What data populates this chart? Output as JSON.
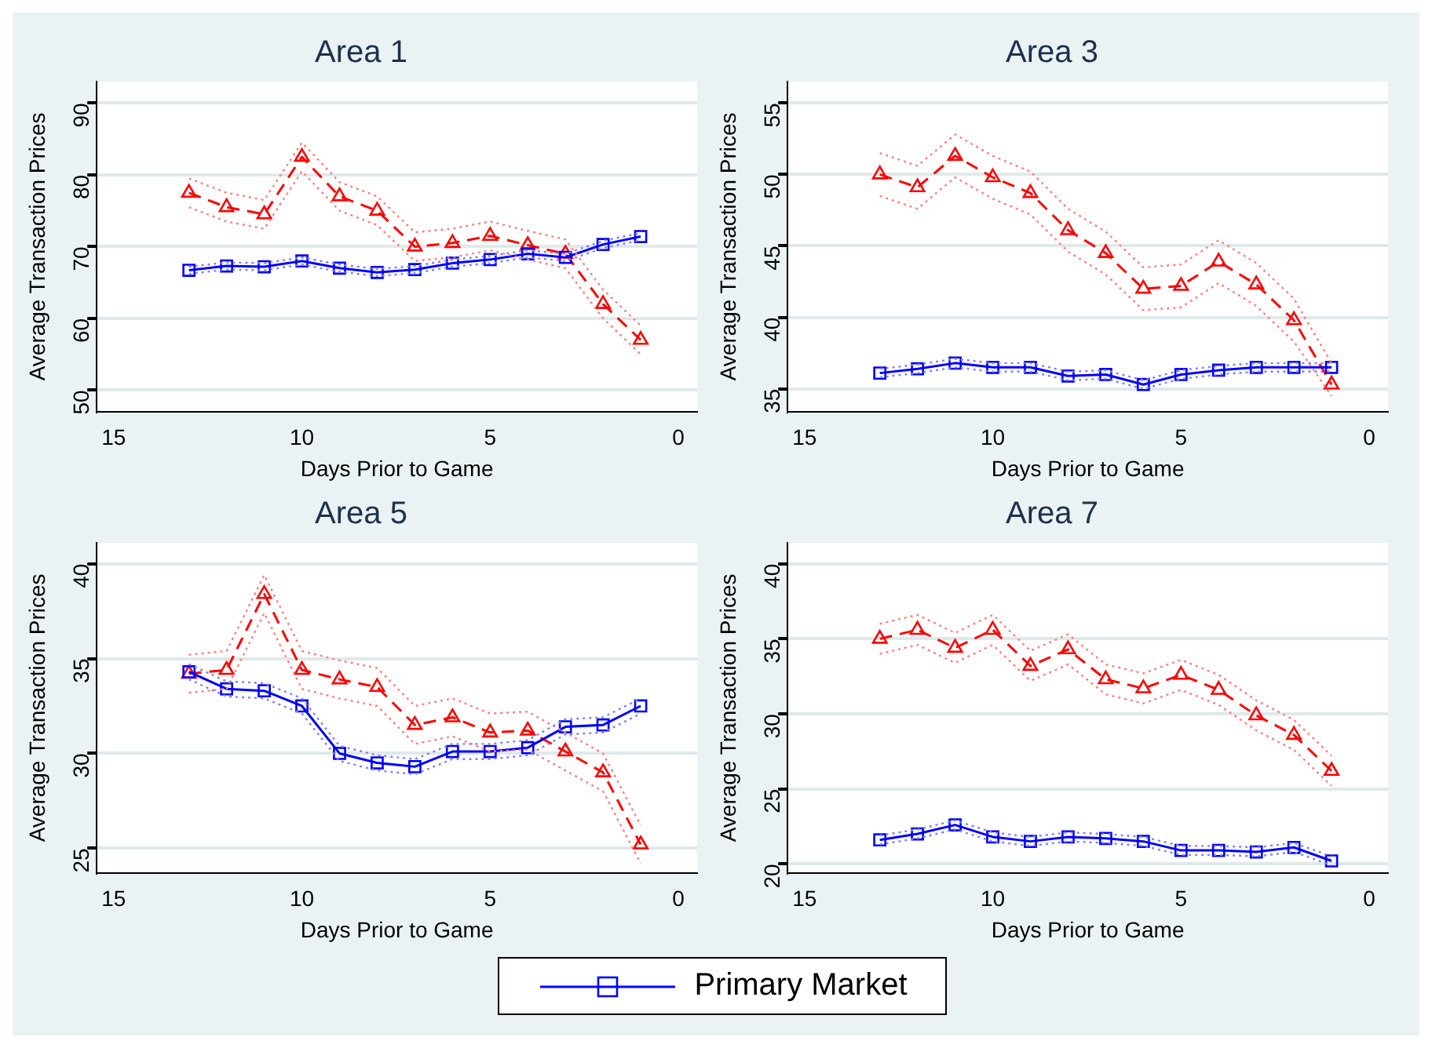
{
  "chart_data": [
    {
      "type": "line",
      "title": "Area 1",
      "xlabel": "Days Prior to Game",
      "ylabel": "Average Transaction Prices",
      "x": [
        13,
        12,
        11,
        10,
        9,
        8,
        7,
        6,
        5,
        4,
        3,
        2,
        1
      ],
      "xlim": [
        15.45,
        -0.5
      ],
      "xticks": [
        15,
        10,
        5,
        0
      ],
      "ylim": [
        47,
        93
      ],
      "yticks": [
        50,
        60,
        70,
        80,
        90
      ],
      "grid": "y",
      "legend": "bottom",
      "series": [
        {
          "color": "#8080ff",
          "marker": "none",
          "line_style": "dotted",
          "values": [
            66.2,
            66.8,
            66.7,
            67.5,
            66.5,
            65.9,
            66.3,
            67.2,
            67.7,
            68.5,
            68,
            69.8,
            70.9
          ]
        },
        {
          "color": "#8080ff",
          "marker": "none",
          "line_style": "dotted",
          "values": [
            67.2,
            67.8,
            67.7,
            68.5,
            67.5,
            66.9,
            67.3,
            68.2,
            68.7,
            69.5,
            69,
            70.8,
            71.9
          ]
        },
        {
          "color": "#ff8080",
          "marker": "none",
          "line_style": "dotted",
          "values": [
            75.5,
            73.5,
            72.5,
            80.5,
            75,
            73,
            68,
            68.5,
            69.5,
            68.2,
            67,
            60,
            55
          ]
        },
        {
          "color": "#ff8080",
          "marker": "none",
          "line_style": "dotted",
          "values": [
            79.5,
            77.5,
            76.5,
            84.5,
            79,
            77,
            72,
            72.5,
            73.5,
            72.2,
            71,
            64,
            59
          ]
        },
        {
          "name": "Primary Market",
          "color": "#0000ff",
          "marker": "square",
          "line_style": "solid",
          "values": [
            66.7,
            67.3,
            67.2,
            68,
            67,
            66.4,
            66.8,
            67.7,
            68.2,
            69,
            68.5,
            70.3,
            71.4
          ]
        },
        {
          "color": "#ff0000",
          "marker": "triangle",
          "line_style": "dashed",
          "values": [
            77.5,
            75.5,
            74.5,
            82.5,
            77,
            75,
            70,
            70.5,
            71.5,
            70.2,
            69,
            62,
            57
          ]
        }
      ]
    },
    {
      "type": "line",
      "title": "Area 3",
      "xlabel": "Days Prior to Game",
      "ylabel": "Average Transaction Prices",
      "x": [
        13,
        12,
        11,
        10,
        9,
        8,
        7,
        6,
        5,
        4,
        3,
        2,
        1
      ],
      "xlim": [
        15.45,
        -0.5
      ],
      "xticks": [
        15,
        10,
        5,
        0
      ],
      "ylim": [
        33.4,
        56.5
      ],
      "yticks": [
        35,
        40,
        45,
        50,
        55
      ],
      "grid": "y",
      "legend": "bottom",
      "series": [
        {
          "color": "#8080ff",
          "marker": "none",
          "line_style": "dotted",
          "values": [
            35.8,
            36.1,
            36.5,
            36.2,
            36.2,
            35.6,
            35.7,
            35.0,
            35.7,
            36.0,
            36.2,
            36.2,
            36.2
          ]
        },
        {
          "color": "#8080ff",
          "marker": "none",
          "line_style": "dotted",
          "values": [
            36.4,
            36.7,
            37.1,
            36.8,
            36.8,
            36.2,
            36.3,
            35.6,
            36.3,
            36.6,
            36.8,
            36.8,
            36.8
          ]
        },
        {
          "color": "#ff8080",
          "marker": "none",
          "line_style": "dotted",
          "values": [
            48.5,
            47.6,
            49.8,
            48.3,
            47.2,
            44.6,
            43,
            40.5,
            40.7,
            42.4,
            40.8,
            38.3,
            34.5
          ]
        },
        {
          "color": "#ff8080",
          "marker": "none",
          "line_style": "dotted",
          "values": [
            51.5,
            50.6,
            52.8,
            51.3,
            50.2,
            47.6,
            46,
            43.5,
            43.7,
            45.4,
            43.8,
            41.3,
            36.8
          ]
        },
        {
          "name": "Primary Market",
          "color": "#0000ff",
          "marker": "square",
          "line_style": "solid",
          "values": [
            36.1,
            36.4,
            36.8,
            36.5,
            36.5,
            35.9,
            36.0,
            35.3,
            36.0,
            36.3,
            36.5,
            36.5,
            36.5
          ]
        },
        {
          "color": "#ff0000",
          "marker": "triangle",
          "line_style": "dashed",
          "values": [
            50,
            49.1,
            51.3,
            49.8,
            48.7,
            46.1,
            44.5,
            42,
            42.2,
            43.9,
            42.3,
            39.8,
            35.3
          ]
        }
      ]
    },
    {
      "type": "line",
      "title": "Area 5",
      "xlabel": "Days Prior to Game",
      "ylabel": "Average Transaction Prices",
      "x": [
        13,
        12,
        11,
        10,
        9,
        8,
        7,
        6,
        5,
        4,
        3,
        2,
        1
      ],
      "xlim": [
        15.45,
        -0.5
      ],
      "xticks": [
        15,
        10,
        5,
        0
      ],
      "ylim": [
        23.7,
        41.1
      ],
      "yticks": [
        25,
        30,
        35,
        40
      ],
      "grid": "y",
      "legend": "bottom",
      "series": [
        {
          "color": "#8080ff",
          "marker": "none",
          "line_style": "dotted",
          "values": [
            33.9,
            33,
            32.9,
            32.1,
            29.6,
            29.1,
            28.9,
            29.7,
            29.7,
            29.9,
            31,
            31.1,
            32.1
          ]
        },
        {
          "color": "#8080ff",
          "marker": "none",
          "line_style": "dotted",
          "values": [
            34.7,
            33.8,
            33.7,
            32.9,
            30.4,
            29.9,
            29.7,
            30.5,
            30.5,
            30.7,
            31.8,
            31.9,
            32.9
          ]
        },
        {
          "color": "#ff8080",
          "marker": "none",
          "line_style": "dotted",
          "values": [
            33.2,
            33.4,
            37.4,
            33.4,
            32.9,
            32.5,
            30.5,
            30.9,
            30.1,
            30.2,
            29.1,
            28,
            24.2
          ]
        },
        {
          "color": "#ff8080",
          "marker": "none",
          "line_style": "dotted",
          "values": [
            35.2,
            35.4,
            39.4,
            35.4,
            34.9,
            34.5,
            32.5,
            32.9,
            32.1,
            32.2,
            31.1,
            30,
            26.2
          ]
        },
        {
          "name": "Primary Market",
          "color": "#0000ff",
          "marker": "square",
          "line_style": "solid",
          "values": [
            34.3,
            33.4,
            33.3,
            32.5,
            30.0,
            29.5,
            29.3,
            30.1,
            30.1,
            30.3,
            31.4,
            31.5,
            32.5
          ]
        },
        {
          "color": "#ff0000",
          "marker": "triangle",
          "line_style": "dashed",
          "values": [
            34.2,
            34.4,
            38.4,
            34.4,
            33.9,
            33.5,
            31.5,
            31.9,
            31.1,
            31.2,
            30.1,
            29.0,
            25.2
          ]
        }
      ]
    },
    {
      "type": "line",
      "title": "Area 7",
      "xlabel": "Days Prior to Game",
      "ylabel": "Average Transaction Prices",
      "x": [
        13,
        12,
        11,
        10,
        9,
        8,
        7,
        6,
        5,
        4,
        3,
        2,
        1
      ],
      "xlim": [
        15.45,
        -0.5
      ],
      "xticks": [
        15,
        10,
        5,
        0
      ],
      "ylim": [
        19.4,
        41.4
      ],
      "yticks": [
        20,
        25,
        30,
        35,
        40
      ],
      "grid": "y",
      "legend": "bottom",
      "series": [
        {
          "color": "#8080ff",
          "marker": "none",
          "line_style": "dotted",
          "values": [
            21.3,
            21.7,
            22.3,
            21.5,
            21.2,
            21.5,
            21.4,
            21.2,
            20.6,
            20.6,
            20.5,
            20.8,
            19.9
          ]
        },
        {
          "color": "#8080ff",
          "marker": "none",
          "line_style": "dotted",
          "values": [
            21.9,
            22.3,
            22.9,
            22.1,
            21.8,
            22.1,
            22.0,
            21.8,
            21.2,
            21.2,
            21.1,
            21.4,
            20.5
          ]
        },
        {
          "color": "#ff8080",
          "marker": "none",
          "line_style": "dotted",
          "values": [
            34,
            34.6,
            33.4,
            34.6,
            32.2,
            33.3,
            31.3,
            30.7,
            31.6,
            30.6,
            28.9,
            27.6,
            25.2
          ]
        },
        {
          "color": "#ff8080",
          "marker": "none",
          "line_style": "dotted",
          "values": [
            36,
            36.6,
            35.4,
            36.6,
            34.2,
            35.3,
            33.3,
            32.7,
            33.6,
            32.6,
            30.9,
            29.6,
            27.2
          ]
        },
        {
          "name": "Primary Market",
          "color": "#0000ff",
          "marker": "square",
          "line_style": "solid",
          "values": [
            21.6,
            22.0,
            22.6,
            21.8,
            21.5,
            21.8,
            21.7,
            21.5,
            20.9,
            20.9,
            20.8,
            21.1,
            20.2
          ]
        },
        {
          "color": "#ff0000",
          "marker": "triangle",
          "line_style": "dashed",
          "values": [
            35.0,
            35.6,
            34.4,
            35.6,
            33.2,
            34.3,
            32.3,
            31.7,
            32.6,
            31.6,
            29.9,
            28.6,
            26.2
          ]
        }
      ]
    }
  ]
}
